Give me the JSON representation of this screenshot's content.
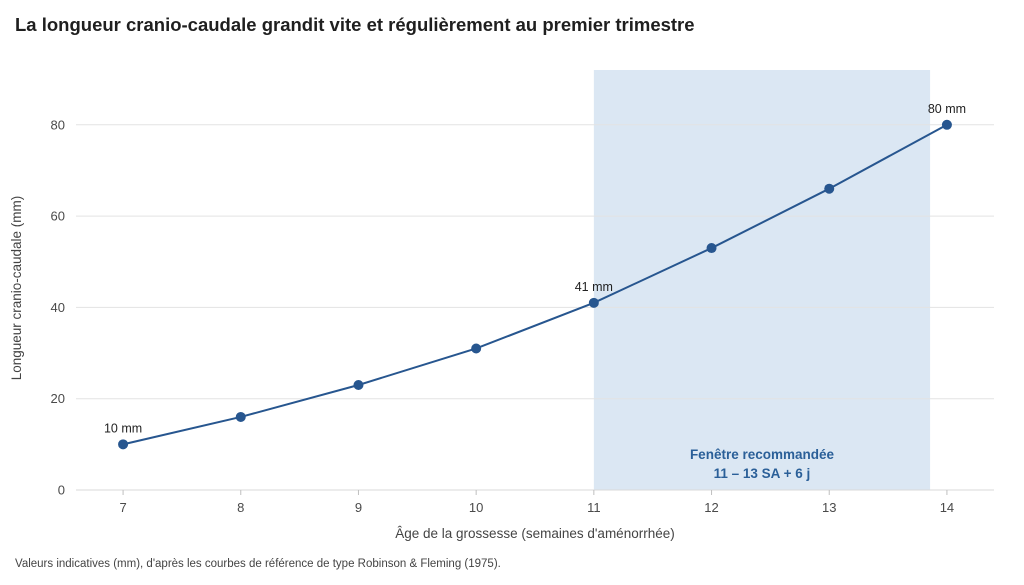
{
  "chart_data": {
    "type": "line",
    "title": "La longueur cranio-caudale grandit vite et régulièrement au premier trimestre",
    "xlabel": "Âge de la grossesse (semaines d'aménorrhée)",
    "ylabel": "Longueur cranio-caudale (mm)",
    "xlim": [
      6.6,
      14.4
    ],
    "ylim": [
      0,
      92
    ],
    "x_ticks": [
      7,
      8,
      9,
      10,
      11,
      12,
      13,
      14
    ],
    "y_ticks": [
      0,
      20,
      40,
      60,
      80
    ],
    "grid": true,
    "legend": "none",
    "series": [
      {
        "x": [
          7,
          8,
          9,
          10,
          11,
          12,
          13,
          14
        ],
        "values": [
          10,
          16,
          23,
          31,
          41,
          53,
          66,
          80
        ],
        "color": "#27568f"
      }
    ],
    "data_labels": [
      {
        "x": 7,
        "y": 10,
        "text": "10 mm"
      },
      {
        "x": 11,
        "y": 41,
        "text": "41 mm"
      },
      {
        "x": 14,
        "y": 80,
        "text": "80 mm"
      }
    ],
    "highlight_band": {
      "x_start": 11,
      "x_end": 13.857,
      "color": "#dbe7f3",
      "label_line1": "Fenêtre recommandée",
      "label_line2": "11 – 13 SA + 6 j"
    },
    "footnote": "Valeurs indicatives (mm), d'après les courbes de référence de type Robinson & Fleming (1975)."
  }
}
